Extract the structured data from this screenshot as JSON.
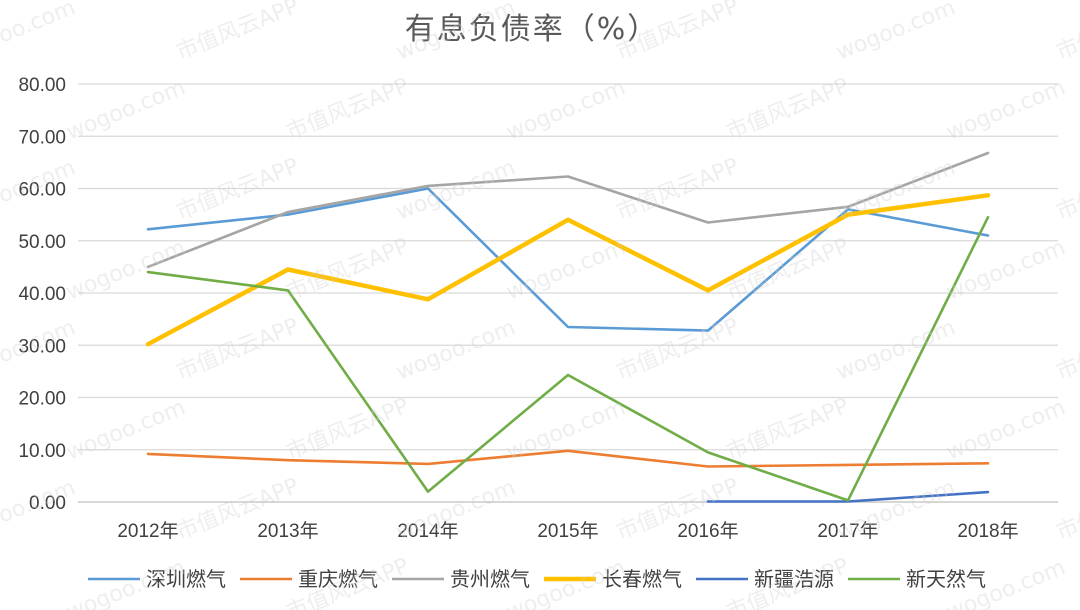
{
  "chart_data": {
    "type": "line",
    "title": "有息负债率（%）",
    "categories": [
      "2012年",
      "2013年",
      "2014年",
      "2015年",
      "2016年",
      "2017年",
      "2018年"
    ],
    "ylim": [
      0,
      80
    ],
    "y_ticks": [
      "0.00",
      "10.00",
      "20.00",
      "30.00",
      "40.00",
      "50.00",
      "60.00",
      "70.00",
      "80.00"
    ],
    "grid": true,
    "legend_position": "bottom",
    "series": [
      {
        "name": "深圳燃气",
        "color": "#5b9bd5",
        "values": [
          52.2,
          55.0,
          60.0,
          33.5,
          32.8,
          56.0,
          51.0
        ]
      },
      {
        "name": "重庆燃气",
        "color": "#ed7d31",
        "values": [
          9.2,
          8.0,
          7.3,
          9.8,
          6.8,
          7.1,
          7.4
        ]
      },
      {
        "name": "贵州燃气",
        "color": "#a5a5a5",
        "values": [
          45.0,
          55.5,
          60.5,
          62.3,
          53.5,
          56.5,
          66.8
        ]
      },
      {
        "name": "长春燃气",
        "color": "#ffc000",
        "values": [
          30.2,
          44.5,
          38.8,
          54.0,
          40.5,
          55.0,
          58.7
        ]
      },
      {
        "name": "新疆浩源",
        "color": "#4472c4",
        "values": [
          null,
          null,
          null,
          null,
          0.1,
          0.1,
          1.9
        ]
      },
      {
        "name": "新天然气",
        "color": "#70ad47",
        "values": [
          44.0,
          40.5,
          2.0,
          24.3,
          9.5,
          0.3,
          54.5
        ]
      }
    ]
  },
  "watermark": {
    "site": "wogoo.com",
    "brand": "市值风云APP"
  }
}
